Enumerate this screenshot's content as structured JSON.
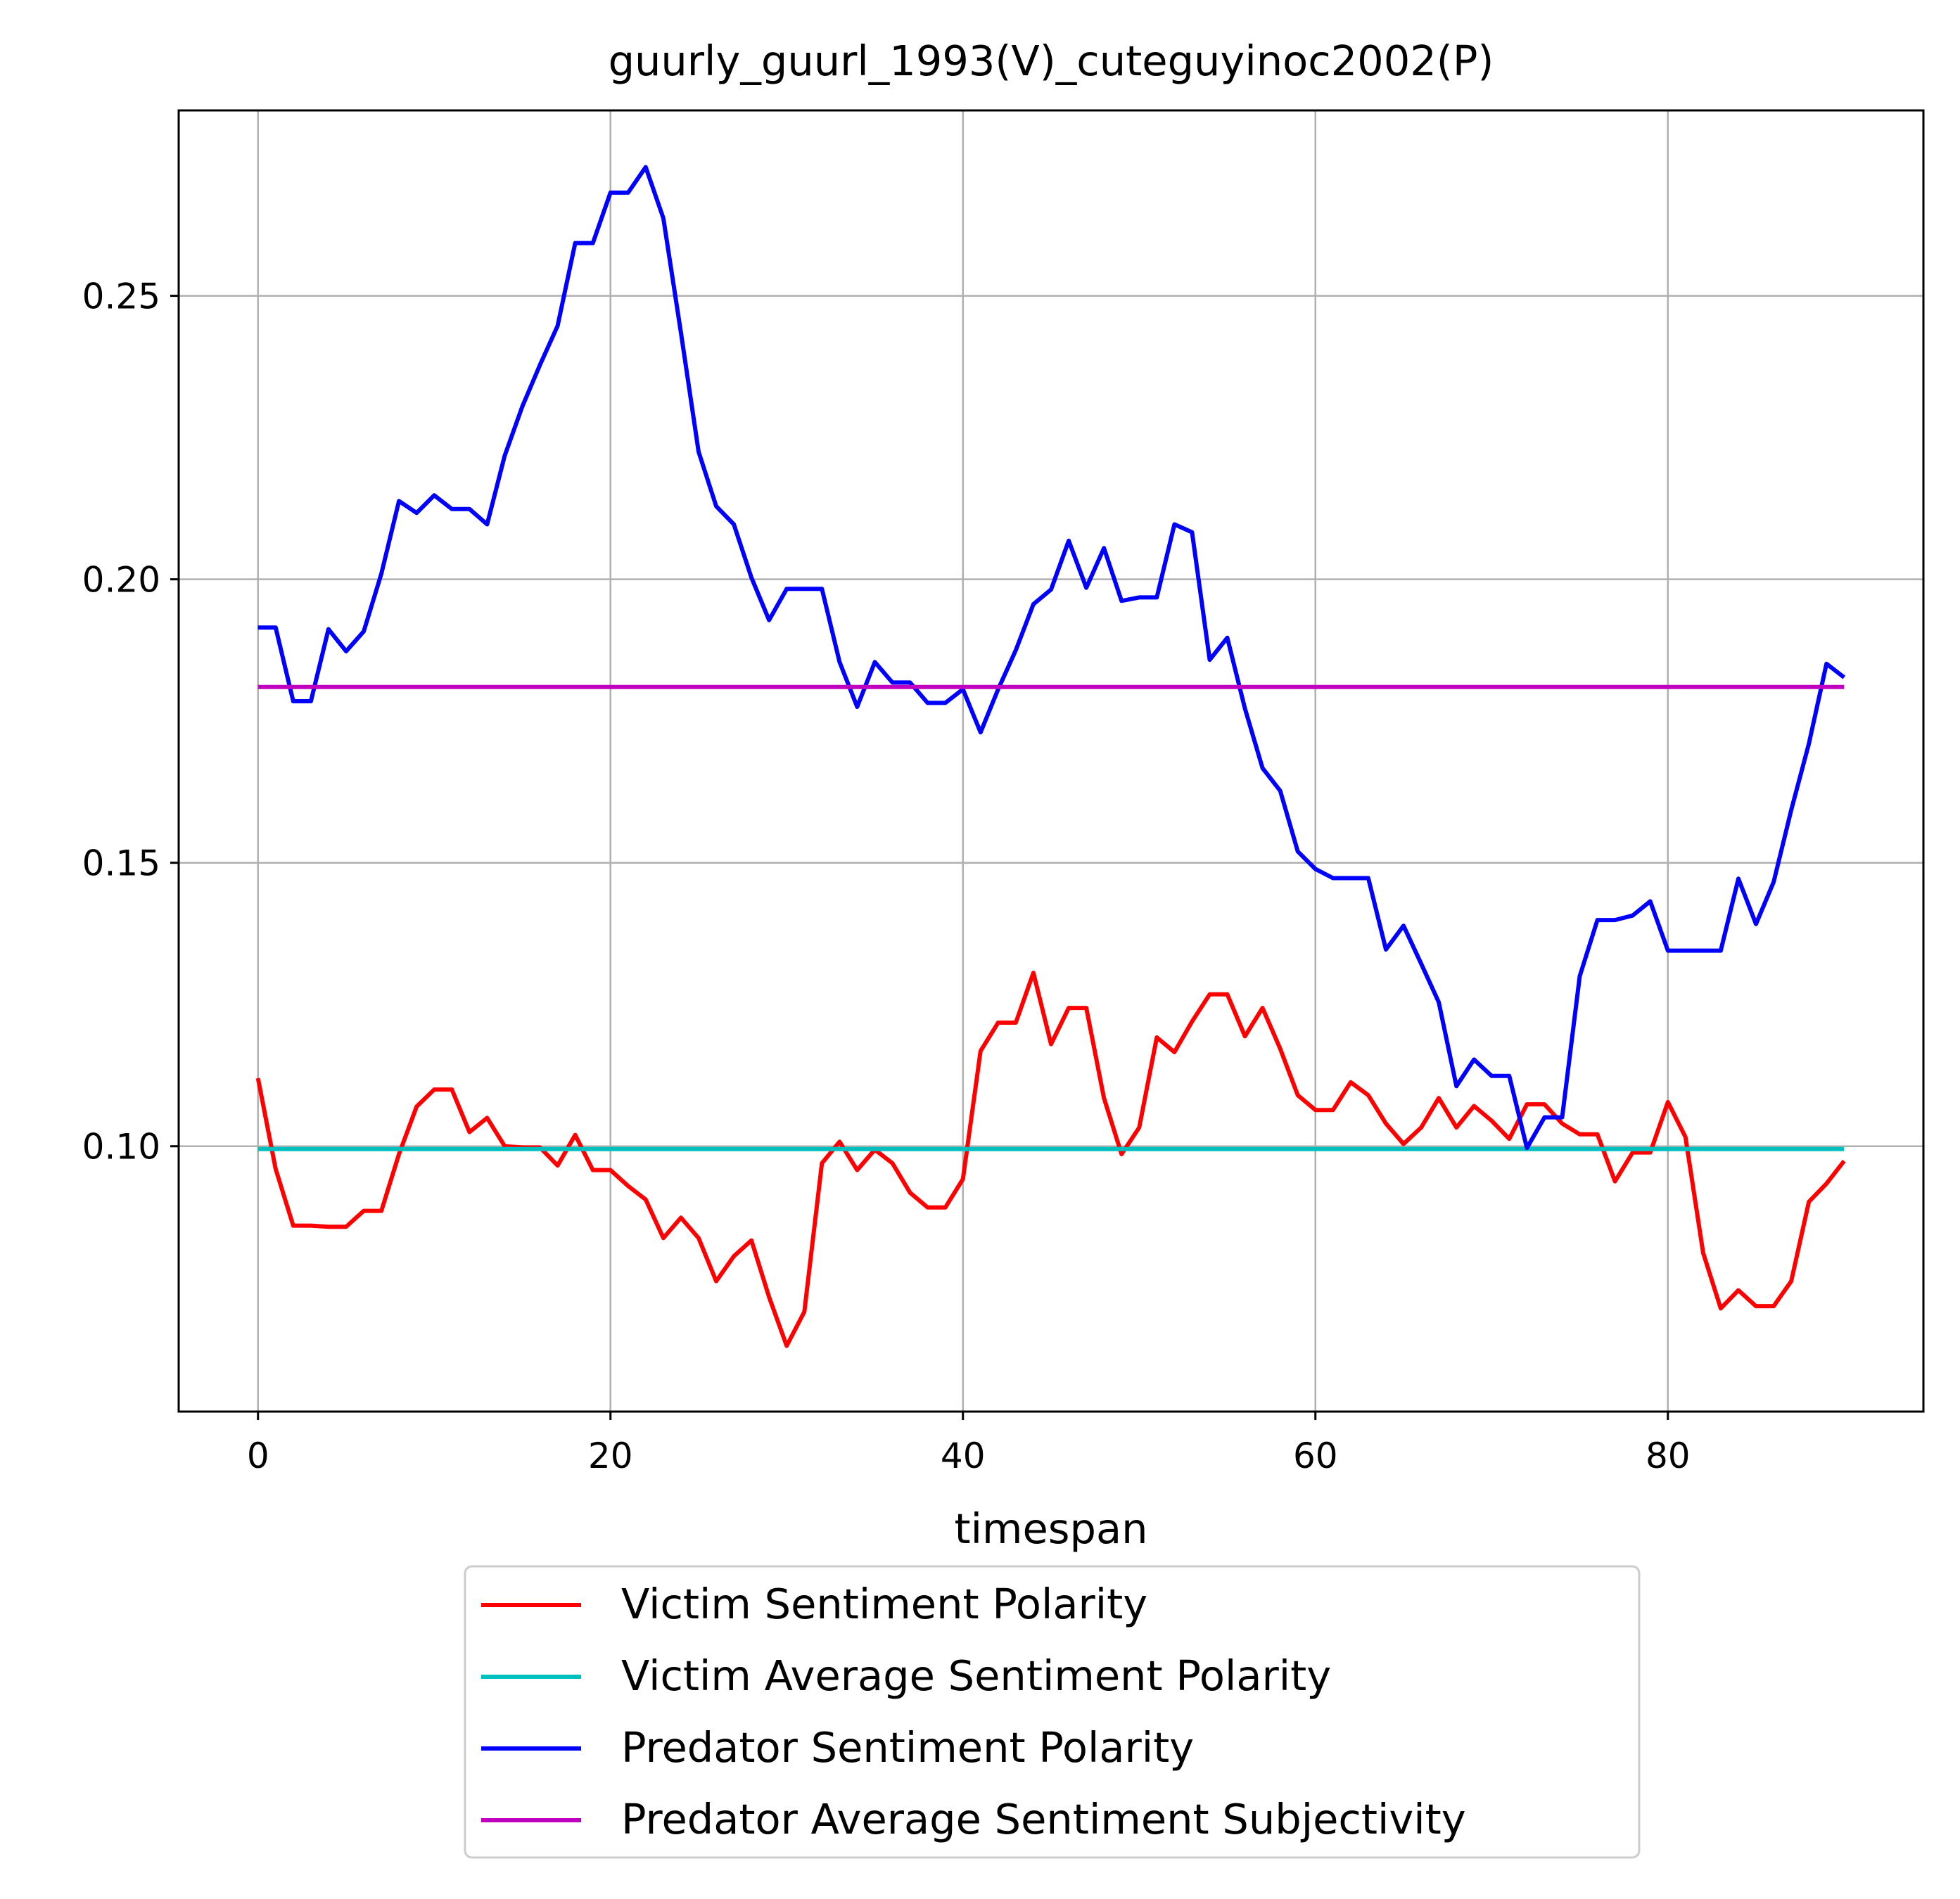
{
  "chart_data": {
    "type": "line",
    "title": "guurly_guurl_1993(V)_cuteguyinoc2002(P)",
    "xlabel": "timespan",
    "ylabel": "",
    "xlim": [
      -4.5,
      94.5
    ],
    "ylim": [
      0.0532,
      0.2827
    ],
    "xticks": [
      0,
      20,
      40,
      60,
      80
    ],
    "xtick_labels": [
      "0",
      "20",
      "40",
      "60",
      "80"
    ],
    "yticks": [
      0.1,
      0.15,
      0.2,
      0.25
    ],
    "ytick_labels": [
      "0.10",
      "0.15",
      "0.20",
      "0.25"
    ],
    "grid": true,
    "legend_position": "below the chart",
    "series": [
      {
        "name": "Victim Sentiment Polarity",
        "color": "#ff0000",
        "values": [
          0.112,
          0.096,
          0.086,
          0.086,
          0.0858,
          0.0858,
          0.0886,
          0.0886,
          0.0986,
          0.107,
          0.11,
          0.11,
          0.1025,
          0.105,
          0.1,
          0.0998,
          0.0998,
          0.0966,
          0.102,
          0.0958,
          0.0958,
          0.093,
          0.0906,
          0.0838,
          0.0874,
          0.0838,
          0.0762,
          0.0806,
          0.0834,
          0.0734,
          0.0648,
          0.0708,
          0.097,
          0.1008,
          0.0958,
          0.0994,
          0.097,
          0.0918,
          0.0892,
          0.0892,
          0.0942,
          0.1168,
          0.1218,
          0.1218,
          0.1306,
          0.118,
          0.1244,
          0.1244,
          0.1085,
          0.0986,
          0.1033,
          0.1192,
          0.1166,
          0.122,
          0.1268,
          0.1268,
          0.1194,
          0.1244,
          0.1172,
          0.109,
          0.1064,
          0.1064,
          0.1113,
          0.109,
          0.104,
          0.1004,
          0.1033,
          0.1085,
          0.1033,
          0.1071,
          0.1045,
          0.1013,
          0.1074,
          0.1074,
          0.104,
          0.1021,
          0.1021,
          0.0938,
          0.0989,
          0.0989,
          0.1078,
          0.1016,
          0.0812,
          0.0714,
          0.0746,
          0.0718,
          0.0718,
          0.0762,
          0.0902,
          0.0934,
          0.0974
        ]
      },
      {
        "name": "Victim Average Sentiment Polarity",
        "color": "#00bfbf",
        "values": [
          0.0995,
          0.0995
        ]
      },
      {
        "name": "Predator Sentiment Polarity",
        "color": "#0000ff",
        "values": [
          0.1915,
          0.1915,
          0.1785,
          0.1785,
          0.1912,
          0.1873,
          0.1908,
          0.201,
          0.2138,
          0.2117,
          0.2148,
          0.2124,
          0.2124,
          0.2097,
          0.2218,
          0.2305,
          0.2378,
          0.2447,
          0.2593,
          0.2593,
          0.2682,
          0.2682,
          0.2727,
          0.2637,
          0.2435,
          0.2225,
          0.2129,
          0.2097,
          0.2003,
          0.1928,
          0.1983,
          0.1983,
          0.1983,
          0.1854,
          0.1775,
          0.1854,
          0.1818,
          0.1818,
          0.1782,
          0.1782,
          0.1806,
          0.173,
          0.1806,
          0.1875,
          0.1956,
          0.1982,
          0.2068,
          0.1985,
          0.2055,
          0.1962,
          0.1968,
          0.1968,
          0.2097,
          0.2083,
          0.1858,
          0.1897,
          0.1772,
          0.1667,
          0.1627,
          0.152,
          0.1489,
          0.1473,
          0.1473,
          0.1473,
          0.1347,
          0.1389,
          0.1322,
          0.1254,
          0.1106,
          0.1153,
          0.1124,
          0.1124,
          0.0997,
          0.1051,
          0.1051,
          0.13,
          0.1399,
          0.1399,
          0.1407,
          0.1432,
          0.1345,
          0.1345,
          0.1345,
          0.1345,
          0.1472,
          0.1392,
          0.1466,
          0.1593,
          0.171,
          0.1851,
          0.1827
        ]
      },
      {
        "name": "Predator Average Sentiment Subjectivity",
        "color": "#bf00bf",
        "values": [
          0.181,
          0.181
        ]
      }
    ]
  }
}
